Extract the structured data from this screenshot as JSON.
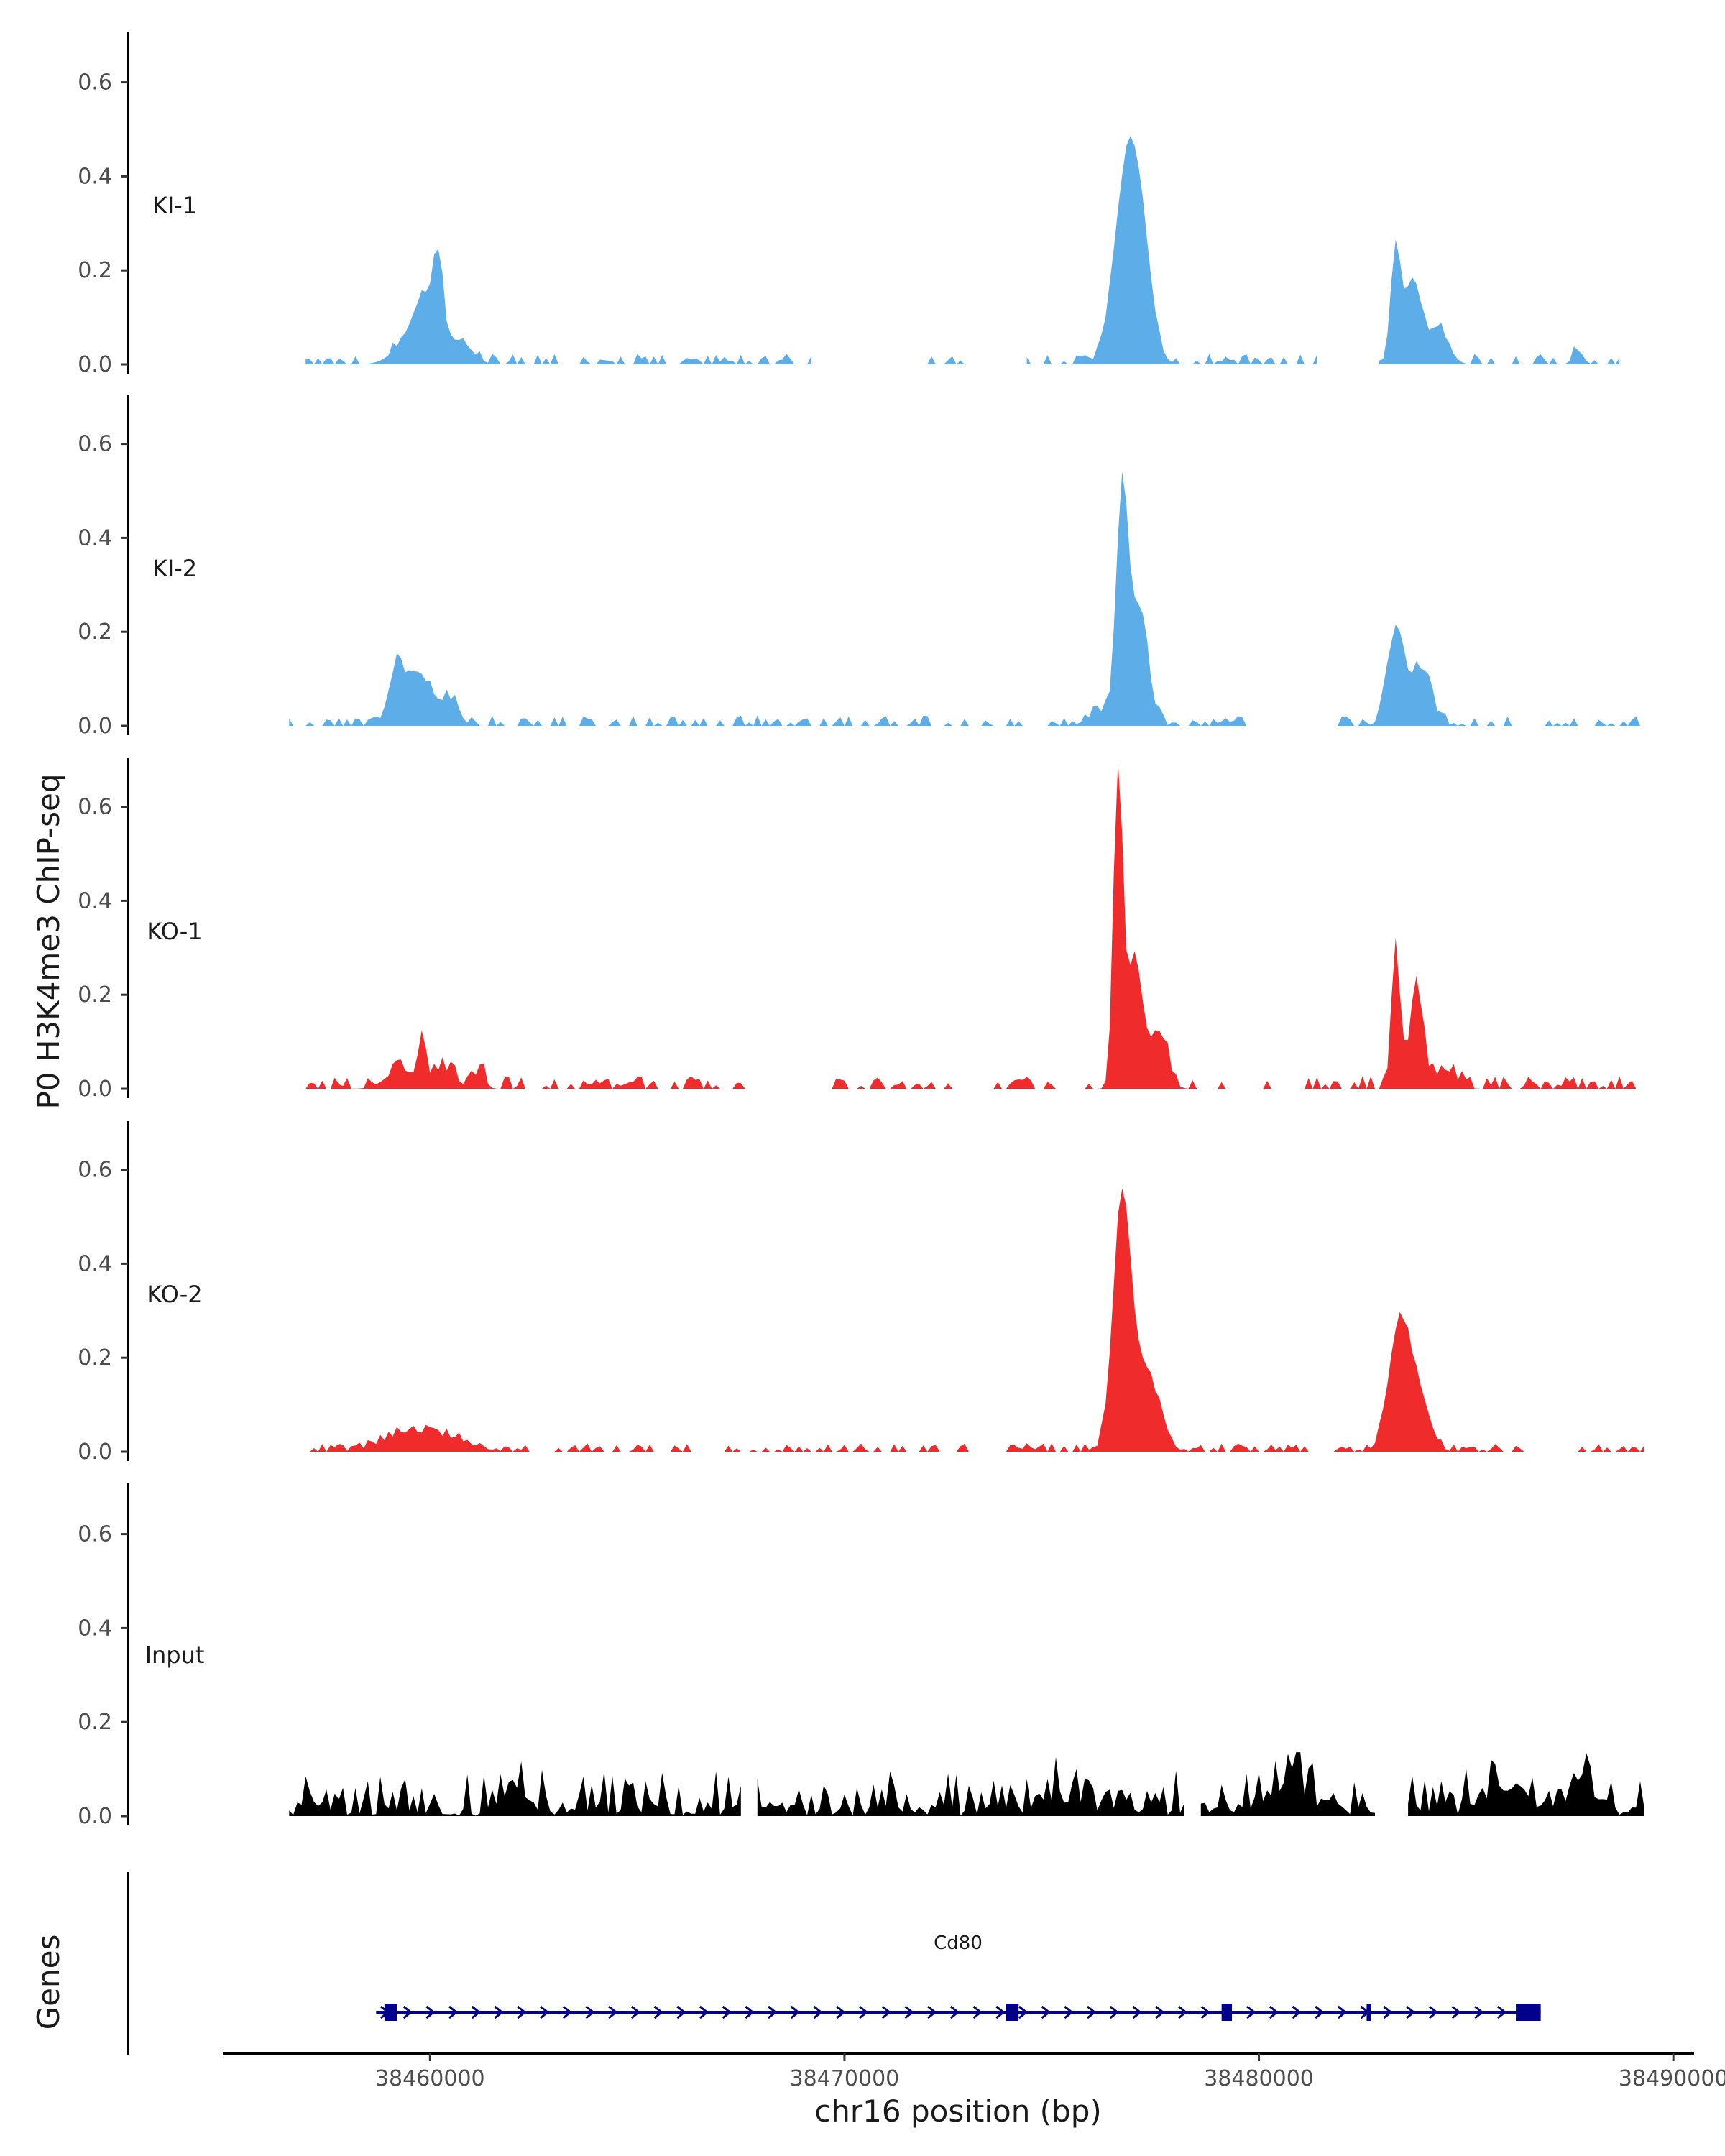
{
  "chart_data": {
    "type": "area",
    "ylabel": "P0 H3K4me3 ChIP-seq",
    "xlabel": "chr16 position (bp)",
    "genes_label": "Genes",
    "x_range": [
      38455000,
      38490500
    ],
    "ylim": [
      0,
      0.7
    ],
    "y_ticks": [
      0.0,
      0.2,
      0.4,
      0.6
    ],
    "y_tick_labels": [
      "0.0",
      "0.2",
      "0.4",
      "0.6"
    ],
    "x_ticks": [
      38460000,
      38470000,
      38480000,
      38490000
    ],
    "x_tick_labels": [
      "38460000",
      "38470000",
      "38480000",
      "38490000"
    ],
    "colors": {
      "KI": "#5dade8",
      "KO": "#ef2b2b",
      "Input": "#000000",
      "gene": "#00008b"
    },
    "series": [
      {
        "name": "KI-1",
        "color": "#5dade8",
        "x_start": 38457000,
        "x_end": 38488700,
        "bin": 100,
        "gaps": [
          [
            38469300,
            38471800
          ],
          [
            38473000,
            38474300
          ],
          [
            38481500,
            38482800
          ]
        ],
        "peaks": [
          [
            38459600,
            0.06,
            400
          ],
          [
            38459900,
            0.1,
            250
          ],
          [
            38460200,
            0.16,
            120
          ],
          [
            38460700,
            0.05,
            300
          ],
          [
            38476800,
            0.4,
            300
          ],
          [
            38477200,
            0.18,
            250
          ],
          [
            38483300,
            0.25,
            120
          ],
          [
            38483700,
            0.18,
            180
          ],
          [
            38484300,
            0.08,
            250
          ],
          [
            38487700,
            0.03,
            120
          ]
        ],
        "noise": 0.015
      },
      {
        "name": "KI-2",
        "color": "#5dade8",
        "x_start": 38456600,
        "x_end": 38489300,
        "bin": 100,
        "gaps": [
          [
            38480000,
            38481800
          ]
        ],
        "peaks": [
          [
            38459200,
            0.12,
            200
          ],
          [
            38459800,
            0.1,
            300
          ],
          [
            38460500,
            0.05,
            200
          ],
          [
            38476700,
            0.48,
            140
          ],
          [
            38477100,
            0.25,
            220
          ],
          [
            38483300,
            0.19,
            200
          ],
          [
            38483900,
            0.12,
            250
          ],
          [
            38476200,
            0.03,
            300
          ]
        ],
        "noise": 0.015
      },
      {
        "name": "KO-1",
        "color": "#ef2b2b",
        "x_start": 38457000,
        "x_end": 38489200,
        "bin": 100,
        "gaps": [
          [
            38468200,
            38469500
          ]
        ],
        "peaks": [
          [
            38459300,
            0.04,
            350
          ],
          [
            38459800,
            0.1,
            80
          ],
          [
            38460300,
            0.04,
            300
          ],
          [
            38476600,
            0.66,
            110
          ],
          [
            38477000,
            0.28,
            200
          ],
          [
            38477600,
            0.12,
            200
          ],
          [
            38483300,
            0.32,
            100
          ],
          [
            38483800,
            0.22,
            160
          ],
          [
            38484500,
            0.04,
            250
          ],
          [
            38461200,
            0.04,
            120
          ]
        ],
        "noise": 0.018
      },
      {
        "name": "KO-2",
        "color": "#ef2b2b",
        "x_start": 38457000,
        "x_end": 38489300,
        "bin": 100,
        "gaps": [],
        "peaks": [
          [
            38459500,
            0.04,
            600
          ],
          [
            38460600,
            0.02,
            500
          ],
          [
            38476700,
            0.53,
            220
          ],
          [
            38477300,
            0.16,
            300
          ],
          [
            38483400,
            0.27,
            260
          ],
          [
            38483900,
            0.1,
            250
          ]
        ],
        "noise": 0.012
      },
      {
        "name": "Input",
        "color": "#000000",
        "x_start": 38456600,
        "x_end": 38489300,
        "bin": 100,
        "gaps": [
          [
            38467600,
            38467800
          ],
          [
            38478300,
            38478500
          ],
          [
            38482900,
            38483500
          ]
        ],
        "peaks": [
          [
            38462000,
            0.05,
            300
          ],
          [
            38475000,
            0.03,
            400
          ],
          [
            38480600,
            0.05,
            500
          ],
          [
            38486000,
            0.05,
            500
          ],
          [
            38487800,
            0.06,
            300
          ]
        ],
        "noise": 0.05,
        "floor": 0.03
      }
    ],
    "gene_track": {
      "gene": "Cd80",
      "strand": "+",
      "start": 38458700,
      "end": 38486800,
      "exons": [
        [
          38458900,
          38459200
        ],
        [
          38473900,
          38474200
        ],
        [
          38479100,
          38479350
        ],
        [
          38482600,
          38482680
        ],
        [
          38486200,
          38486800
        ]
      ]
    }
  }
}
